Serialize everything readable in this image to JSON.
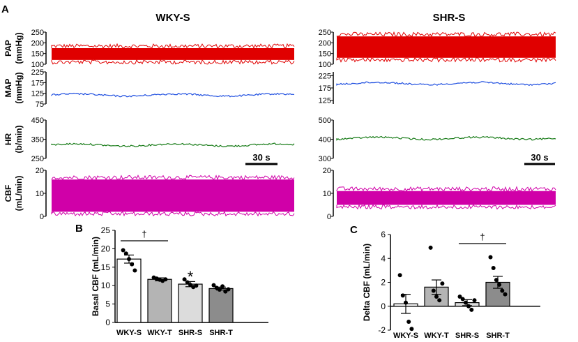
{
  "panel_labels": {
    "a": "A",
    "b": "B",
    "c": "C"
  },
  "colors": {
    "pap": "#e00000",
    "map": "#1f4fe0",
    "hr": "#157a15",
    "cbf": "#d000a8",
    "axis": "#000000"
  },
  "traces": {
    "wky": {
      "title": "WKY-S",
      "scale_bar": "30 s",
      "rows": [
        {
          "key": "pap",
          "label": "PAP",
          "unit": "(mmHg)",
          "ticks": [
            "250",
            "200",
            "150",
            "100"
          ],
          "range": [
            100,
            250
          ],
          "band": [
            120,
            175
          ]
        },
        {
          "key": "map",
          "label": "MAP",
          "unit": "(mmHg)",
          "ticks": [
            "225",
            "175",
            "125",
            "75"
          ],
          "range": [
            75,
            225
          ],
          "level": 117
        },
        {
          "key": "hr",
          "label": "HR",
          "unit": "(b/min)",
          "ticks": [
            "450",
            "350",
            "250"
          ],
          "range": [
            250,
            450
          ],
          "level": 320
        },
        {
          "key": "cbf",
          "label": "CBF",
          "unit": "(mL/min)",
          "ticks": [
            "20",
            "10",
            "0"
          ],
          "range": [
            0,
            20
          ],
          "band": [
            2,
            16
          ]
        }
      ]
    },
    "shr": {
      "title": "SHR-S",
      "scale_bar": "30 s",
      "rows": [
        {
          "key": "pap",
          "label": "PAP",
          "unit": "(mmHg)",
          "ticks": [
            "250",
            "200",
            "150",
            "100"
          ],
          "range": [
            100,
            250
          ],
          "band": [
            130,
            230
          ]
        },
        {
          "key": "map",
          "label": "MAP",
          "unit": "(mmHg)",
          "ticks": [
            "225",
            "175",
            "125"
          ],
          "range": [
            110,
            240
          ],
          "level": 193
        },
        {
          "key": "hr",
          "label": "HR",
          "unit": "(b/min)",
          "ticks": [
            "500",
            "400",
            "300"
          ],
          "range": [
            300,
            500
          ],
          "level": 405
        },
        {
          "key": "cbf",
          "label": "CBF",
          "unit": "(mL/min)",
          "ticks": [
            "20",
            "10",
            "0"
          ],
          "range": [
            0,
            20
          ],
          "band": [
            5,
            11
          ]
        }
      ]
    }
  },
  "chart_data": [
    {
      "type": "bar",
      "panel": "B",
      "ylabel": "Basal CBF (mL/min)",
      "ylim": [
        0,
        25
      ],
      "yticks": [
        "0",
        "5",
        "10",
        "15",
        "20",
        "25"
      ],
      "categories": [
        "WKY-S",
        "WKY-T",
        "SHR-S",
        "SHR-T"
      ],
      "values": [
        17.2,
        11.7,
        10.4,
        9.2
      ],
      "sem": [
        1.1,
        0.4,
        0.7,
        0.4
      ],
      "points": [
        [
          19.6,
          18.7,
          17.2,
          15.8,
          14.1
        ],
        [
          12.2,
          11.9,
          11.6,
          11.3,
          11.7
        ],
        [
          11.7,
          10.9,
          10.2,
          9.6,
          10.0
        ],
        [
          10.1,
          9.4,
          8.9,
          9.8,
          8.4,
          9.0
        ]
      ],
      "bar_colors": [
        "#ffffff",
        "#b4b4b4",
        "#dcdcdc",
        "#8c8c8c"
      ],
      "annotations": {
        "sig_marker": "†",
        "sig_pair": [
          0,
          1
        ],
        "asterisk": "*",
        "asterisk_on": 2
      }
    },
    {
      "type": "bar",
      "panel": "C",
      "ylabel": "Delta  CBF (mL/min)",
      "ylim": [
        -2,
        6
      ],
      "yticks": [
        "-2",
        "0",
        "2",
        "4",
        "6"
      ],
      "categories": [
        "WKY-S",
        "WKY-T",
        "SHR-S",
        "SHR-T"
      ],
      "values": [
        0.2,
        1.6,
        0.3,
        2.0
      ],
      "sem": [
        0.8,
        0.6,
        0.25,
        0.5
      ],
      "points": [
        [
          2.6,
          0.9,
          0.3,
          -1.3,
          -1.9
        ],
        [
          4.9,
          1.3,
          0.8,
          0.5,
          1.9
        ],
        [
          0.8,
          0.6,
          0.3,
          0.0,
          -0.3,
          0.5
        ],
        [
          4.1,
          3.2,
          2.2,
          1.8,
          1.3,
          1.0
        ]
      ],
      "bar_colors": [
        "#ffffff",
        "#b4b4b4",
        "#dcdcdc",
        "#8c8c8c"
      ],
      "annotations": {
        "sig_marker": "†",
        "sig_pair": [
          2,
          3
        ]
      }
    }
  ]
}
